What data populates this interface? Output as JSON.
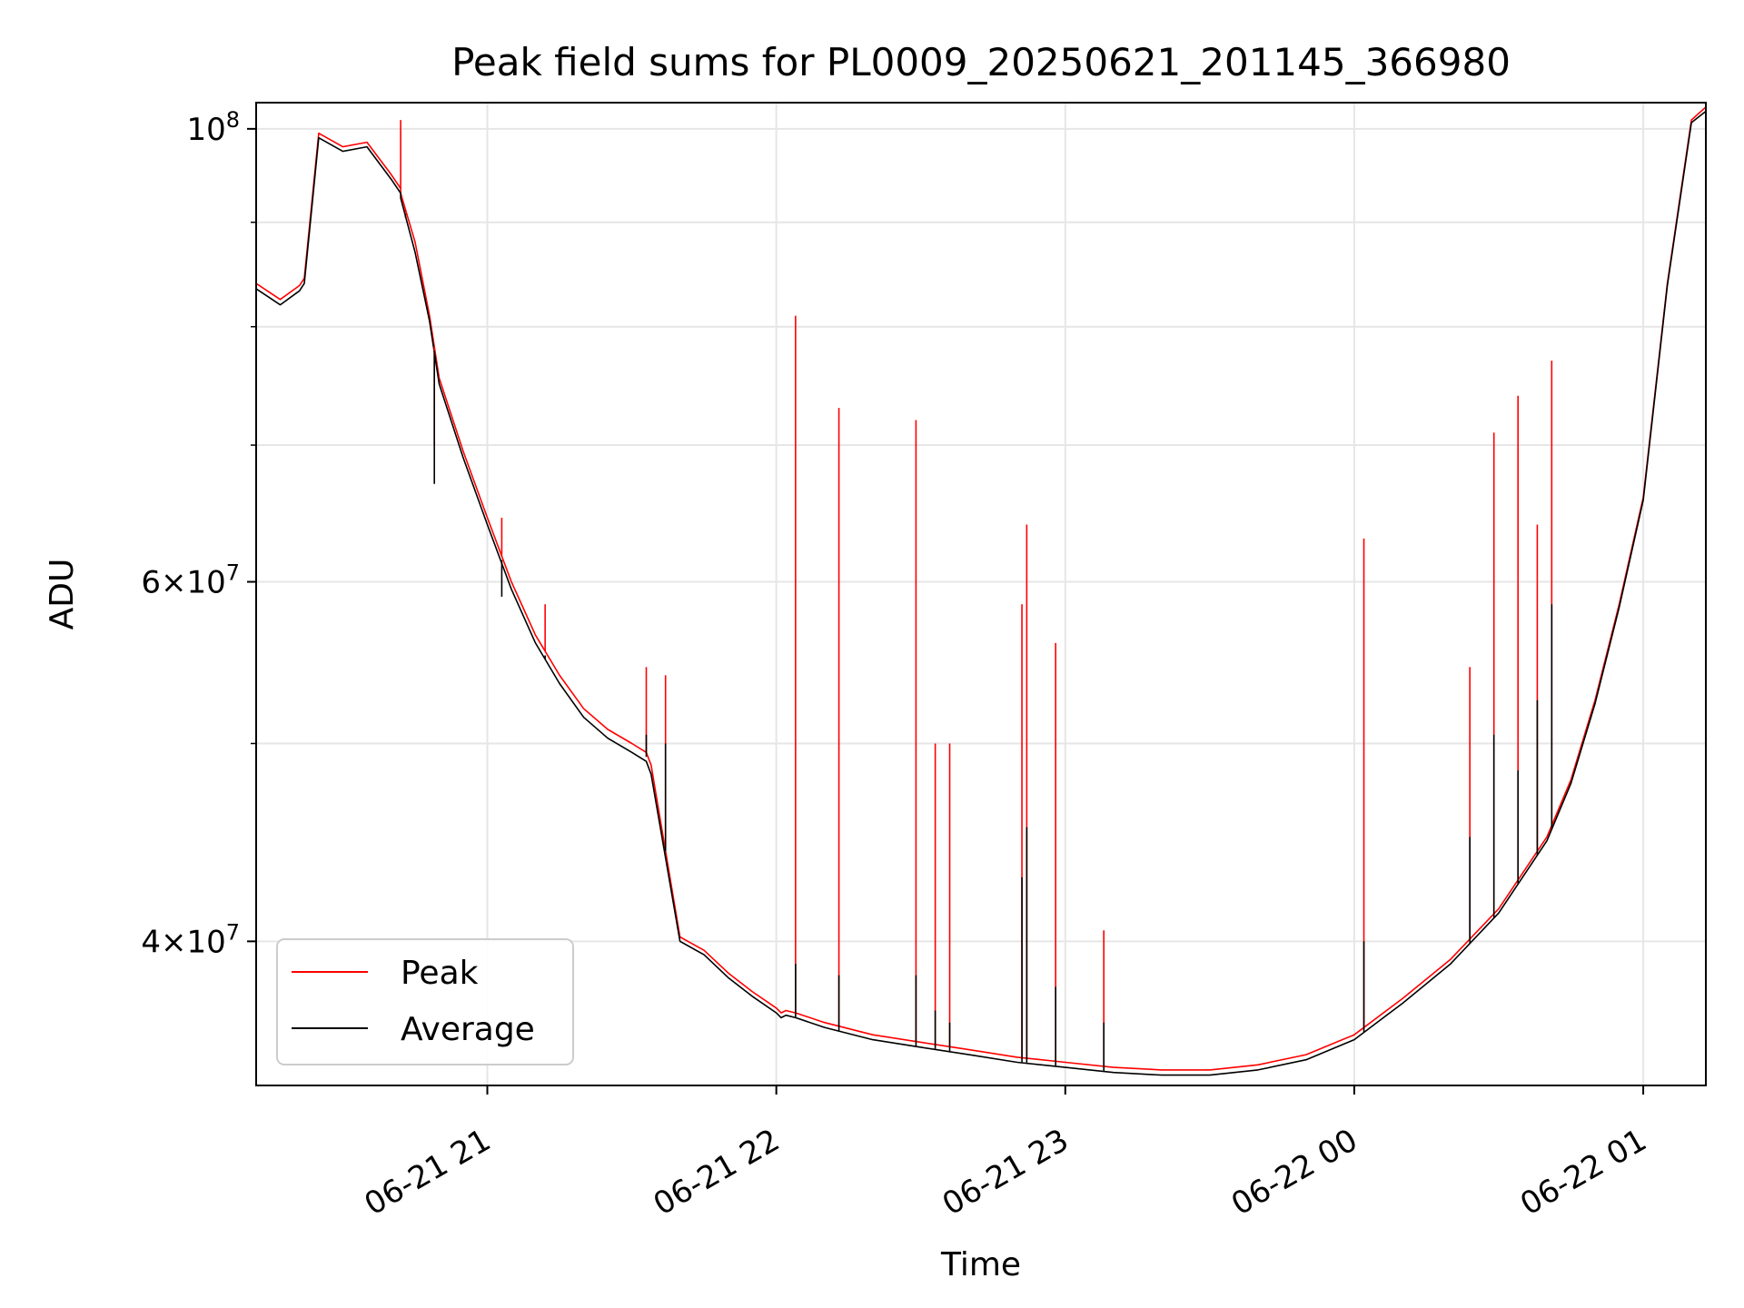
{
  "chart_data": {
    "type": "line",
    "title": "Peak field sums for PL0009_20250621_201145_366980",
    "xlabel": "Time",
    "ylabel": "ADU",
    "yscale": "log",
    "grid": true,
    "legend_position": "lower-left",
    "ylim": [
      34000000,
      103000000
    ],
    "xlim": [
      "2025-06-21 20:12",
      "2025-06-22 01:13"
    ],
    "x_ticks": [
      {
        "value": "2025-06-21 21:00",
        "label": "06-21 21"
      },
      {
        "value": "2025-06-21 22:00",
        "label": "06-21 22"
      },
      {
        "value": "2025-06-21 23:00",
        "label": "06-21 23"
      },
      {
        "value": "2025-06-22 00:00",
        "label": "06-22 00"
      },
      {
        "value": "2025-06-22 01:00",
        "label": "06-22 01"
      }
    ],
    "y_ticks": [
      {
        "value": 40000000,
        "base": "4",
        "mult": "×",
        "pow": "10",
        "exp": "7"
      },
      {
        "value": 60000000,
        "base": "6",
        "mult": "×",
        "pow": "10",
        "exp": "7"
      },
      {
        "value": 100000000,
        "base": "",
        "mult": "",
        "pow": "10",
        "exp": "8"
      }
    ],
    "y_minor_ticks": [
      50000000,
      70000000,
      80000000,
      90000000
    ],
    "series": [
      {
        "name": "Peak",
        "color": "#ff0000",
        "x": [
          "2025-06-21 20:12",
          "2025-06-21 20:17",
          "2025-06-21 20:21",
          "2025-06-21 20:22",
          "2025-06-21 20:25",
          "2025-06-21 20:30",
          "2025-06-21 20:35",
          "2025-06-21 20:40",
          "2025-06-21 20:42",
          "2025-06-21 20:42",
          "2025-06-21 20:45",
          "2025-06-21 20:48",
          "2025-06-21 20:50",
          "2025-06-21 20:55",
          "2025-06-21 21:00",
          "2025-06-21 21:05",
          "2025-06-21 21:10",
          "2025-06-21 21:15",
          "2025-06-21 21:20",
          "2025-06-21 21:25",
          "2025-06-21 21:30",
          "2025-06-21 21:33",
          "2025-06-21 21:34",
          "2025-06-21 21:40",
          "2025-06-21 21:45",
          "2025-06-21 21:50",
          "2025-06-21 21:55",
          "2025-06-21 22:00",
          "2025-06-21 22:01",
          "2025-06-21 22:02",
          "2025-06-21 22:04",
          "2025-06-21 22:10",
          "2025-06-21 22:20",
          "2025-06-21 22:30",
          "2025-06-21 22:40",
          "2025-06-21 22:50",
          "2025-06-21 23:00",
          "2025-06-21 23:10",
          "2025-06-21 23:20",
          "2025-06-21 23:30",
          "2025-06-21 23:40",
          "2025-06-21 23:50",
          "2025-06-22 00:00",
          "2025-06-22 00:10",
          "2025-06-22 00:20",
          "2025-06-22 00:30",
          "2025-06-22 00:40",
          "2025-06-22 00:45",
          "2025-06-22 00:50",
          "2025-06-22 00:55",
          "2025-06-22 01:00",
          "2025-06-22 01:05",
          "2025-06-22 01:10",
          "2025-06-22 01:13"
        ],
        "y": [
          84000000,
          82500000,
          83800000,
          84500000,
          99500000,
          98000000,
          98500000,
          95000000,
          93500000,
          93000000,
          88000000,
          81000000,
          75500000,
          69500000,
          64500000,
          60000000,
          56500000,
          54000000,
          52000000,
          50800000,
          50000000,
          49500000,
          48800000,
          40200000,
          39600000,
          38600000,
          37800000,
          37100000,
          36900000,
          37000000,
          36900000,
          36500000,
          36000000,
          35700000,
          35400000,
          35100000,
          34900000,
          34700000,
          34600000,
          34600000,
          34800000,
          35200000,
          36000000,
          37500000,
          39200000,
          41500000,
          45000000,
          48000000,
          52500000,
          58500000,
          66000000,
          84000000,
          101000000,
          102500000
        ]
      },
      {
        "name": "Average",
        "color": "#000000",
        "x": [
          "2025-06-21 20:12",
          "2025-06-21 20:17",
          "2025-06-21 20:21",
          "2025-06-21 20:22",
          "2025-06-21 20:25",
          "2025-06-21 20:30",
          "2025-06-21 20:35",
          "2025-06-21 20:40",
          "2025-06-21 20:42",
          "2025-06-21 20:42",
          "2025-06-21 20:45",
          "2025-06-21 20:48",
          "2025-06-21 20:50",
          "2025-06-21 20:55",
          "2025-06-21 21:00",
          "2025-06-21 21:05",
          "2025-06-21 21:10",
          "2025-06-21 21:15",
          "2025-06-21 21:20",
          "2025-06-21 21:25",
          "2025-06-21 21:30",
          "2025-06-21 21:33",
          "2025-06-21 21:34",
          "2025-06-21 21:40",
          "2025-06-21 21:45",
          "2025-06-21 21:50",
          "2025-06-21 21:55",
          "2025-06-21 22:00",
          "2025-06-21 22:01",
          "2025-06-21 22:02",
          "2025-06-21 22:04",
          "2025-06-21 22:10",
          "2025-06-21 22:20",
          "2025-06-21 22:30",
          "2025-06-21 22:40",
          "2025-06-21 22:50",
          "2025-06-21 23:00",
          "2025-06-21 23:10",
          "2025-06-21 23:20",
          "2025-06-21 23:30",
          "2025-06-21 23:40",
          "2025-06-21 23:50",
          "2025-06-22 00:00",
          "2025-06-22 00:10",
          "2025-06-22 00:20",
          "2025-06-22 00:30",
          "2025-06-22 00:40",
          "2025-06-22 00:45",
          "2025-06-22 00:50",
          "2025-06-22 00:55",
          "2025-06-22 01:00",
          "2025-06-22 01:05",
          "2025-06-22 01:10",
          "2025-06-22 01:13"
        ],
        "y": [
          83500000,
          82000000,
          83300000,
          84000000,
          99000000,
          97500000,
          98000000,
          94500000,
          93000000,
          92500000,
          87000000,
          80500000,
          75000000,
          69000000,
          64000000,
          59500000,
          56000000,
          53500000,
          51500000,
          50300000,
          49500000,
          49000000,
          48300000,
          40000000,
          39400000,
          38400000,
          37600000,
          36900000,
          36700000,
          36800000,
          36700000,
          36300000,
          35800000,
          35500000,
          35200000,
          34900000,
          34700000,
          34500000,
          34400000,
          34400000,
          34600000,
          35000000,
          35800000,
          37300000,
          39000000,
          41300000,
          44800000,
          47800000,
          52300000,
          58300000,
          65800000,
          83800000,
          100700000,
          102000000
        ]
      }
    ],
    "spikes": [
      {
        "x": "2025-06-21 20:42",
        "peak": 101000000,
        "average": 93000000
      },
      {
        "x": "2025-06-21 20:43",
        "peak": 91000000,
        "average": 90500000
      },
      {
        "x": "2025-06-21 20:49",
        "peak": 70000000,
        "average": 67000000
      },
      {
        "x": "2025-06-21 21:03",
        "peak": 64500000,
        "average": 59000000
      },
      {
        "x": "2025-06-21 21:12",
        "peak": 58500000,
        "average": 55000000
      },
      {
        "x": "2025-06-21 21:33",
        "peak": 54500000,
        "average": 50500000
      },
      {
        "x": "2025-06-21 21:37",
        "peak": 54000000,
        "average": 50000000
      },
      {
        "x": "2025-06-21 22:04",
        "peak": 81000000,
        "average": 39000000
      },
      {
        "x": "2025-06-21 22:13",
        "peak": 73000000,
        "average": 38500000
      },
      {
        "x": "2025-06-21 22:29",
        "peak": 72000000,
        "average": 38500000
      },
      {
        "x": "2025-06-21 22:33",
        "peak": 50000000,
        "average": 37000000
      },
      {
        "x": "2025-06-21 22:36",
        "peak": 50000000,
        "average": 36500000
      },
      {
        "x": "2025-06-21 22:51",
        "peak": 58500000,
        "average": 43000000
      },
      {
        "x": "2025-06-21 22:52",
        "peak": 64000000,
        "average": 45500000
      },
      {
        "x": "2025-06-21 22:58",
        "peak": 56000000,
        "average": 38000000
      },
      {
        "x": "2025-06-21 23:08",
        "peak": 40500000,
        "average": 36500000
      },
      {
        "x": "2025-06-22 00:02",
        "peak": 63000000,
        "average": 40000000
      },
      {
        "x": "2025-06-22 00:24",
        "peak": 54500000,
        "average": 45000000
      },
      {
        "x": "2025-06-22 00:29",
        "peak": 71000000,
        "average": 50500000
      },
      {
        "x": "2025-06-22 00:34",
        "peak": 74000000,
        "average": 48500000
      },
      {
        "x": "2025-06-22 00:38",
        "peak": 64000000,
        "average": 52500000
      },
      {
        "x": "2025-06-22 00:41",
        "peak": 77000000,
        "average": 58500000
      }
    ]
  }
}
